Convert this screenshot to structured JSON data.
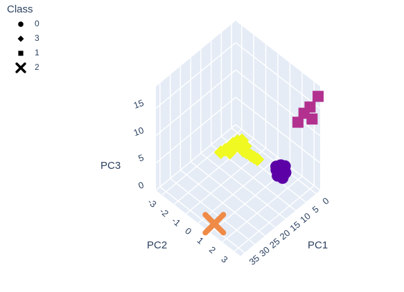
{
  "chart_data": {
    "type": "scatter3d",
    "legend_title": "Class",
    "legend_corner": "top-left",
    "xlabel": "PC1",
    "ylabel": "PC2",
    "zlabel": "PC3",
    "xlim": [
      -2,
      37
    ],
    "ylim": [
      -3.5,
      3.5
    ],
    "zlim": [
      0,
      19
    ],
    "xticks": [
      0,
      5,
      10,
      15,
      20,
      25,
      30,
      35
    ],
    "yticks": [
      -3,
      -2,
      -1,
      0,
      1,
      2,
      3
    ],
    "zticks": [
      0,
      5,
      10,
      15
    ],
    "series": [
      {
        "name": "0",
        "symbol": "circle",
        "color": "#5c01a6",
        "x": [
          4,
          5,
          6,
          7,
          8,
          5.5,
          6.5,
          4.5,
          7.5,
          6,
          5,
          7
        ],
        "y": [
          1.6,
          1.4,
          1.8,
          1.5,
          1.7,
          1.9,
          1.3,
          1.2,
          2.0,
          1.6,
          1.7,
          1.4
        ],
        "z": [
          3,
          2.5,
          3.5,
          2,
          3,
          2.8,
          3.2,
          2.2,
          2.6,
          3.8,
          2,
          2.9
        ]
      },
      {
        "name": "3",
        "symbol": "diamond",
        "color": "#f0f921",
        "x": [
          20,
          19,
          18,
          17,
          16,
          15,
          14,
          13,
          12,
          11,
          16,
          15,
          17,
          14
        ],
        "y": [
          -1,
          -0.8,
          -0.6,
          -0.4,
          -0.2,
          0,
          0.1,
          0.3,
          0.4,
          0.5,
          -0.3,
          -0.1,
          -0.5,
          0
        ],
        "z": [
          6,
          6.5,
          6,
          7,
          7.5,
          6.5,
          6,
          5.5,
          5,
          4.5,
          8,
          8.2,
          7.5,
          7
        ]
      },
      {
        "name": "1",
        "symbol": "square",
        "color": "#b2318f",
        "x": [
          -1,
          0,
          0,
          -1,
          0
        ],
        "y": [
          3.5,
          3,
          2.5,
          3,
          2
        ],
        "z": [
          17.5,
          15,
          13,
          12.5,
          10.5
        ]
      },
      {
        "name": "2",
        "symbol": "x",
        "color": "#ef8a47",
        "x": [
          35
        ],
        "y": [
          1
        ],
        "z": [
          1
        ]
      }
    ]
  }
}
